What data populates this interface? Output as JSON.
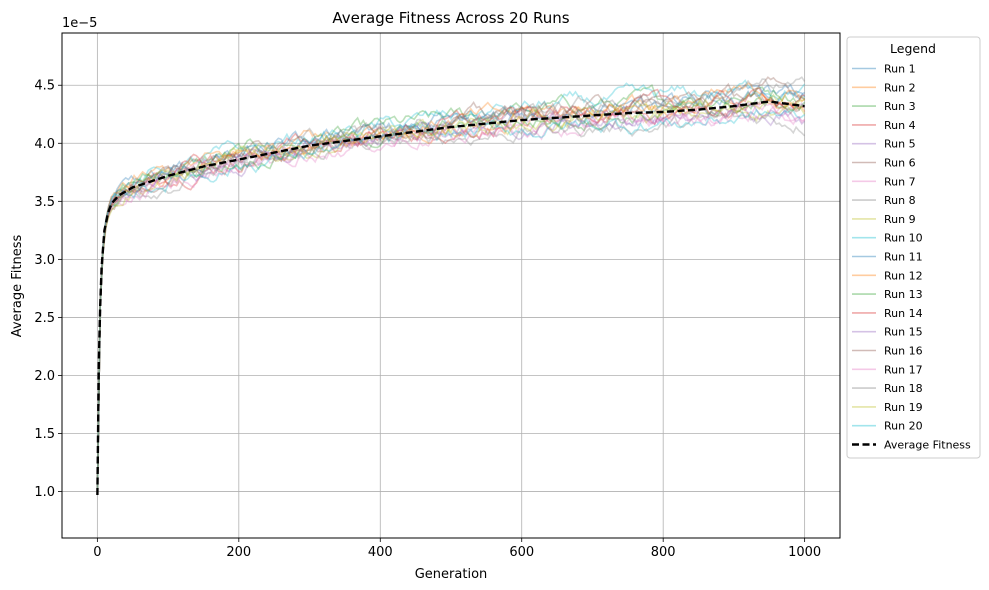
{
  "chart_data": {
    "type": "line",
    "title": "Average Fitness Across 20 Runs",
    "xlabel": "Generation",
    "ylabel": "Average Fitness",
    "y_scale_label": "1e−5",
    "xlim": [
      -50,
      1050
    ],
    "ylim": [
      0.6,
      4.95
    ],
    "y_unit_multiplier": 1e-05,
    "x_ticks": [
      0,
      200,
      400,
      600,
      800,
      1000
    ],
    "y_ticks": [
      1.0,
      1.5,
      2.0,
      2.5,
      3.0,
      3.5,
      4.0,
      4.5
    ],
    "x_tick_labels": [
      "0",
      "200",
      "400",
      "600",
      "800",
      "1000"
    ],
    "y_tick_labels": [
      "1.0",
      "1.5",
      "2.0",
      "2.5",
      "3.0",
      "3.5",
      "4.0",
      "4.5"
    ],
    "grid": true,
    "legend": {
      "title": "Legend",
      "placement": "outside-right"
    },
    "average_series": {
      "name": "Average Fitness",
      "color": "#000000",
      "style": "dashed",
      "x": [
        0,
        2,
        5,
        10,
        15,
        20,
        30,
        50,
        100,
        150,
        200,
        250,
        300,
        350,
        400,
        450,
        500,
        550,
        600,
        650,
        700,
        750,
        800,
        850,
        900,
        950,
        1000
      ],
      "values": [
        0.97,
        2.1,
        2.85,
        3.25,
        3.4,
        3.48,
        3.55,
        3.62,
        3.72,
        3.8,
        3.86,
        3.92,
        3.98,
        4.02,
        4.06,
        4.1,
        4.14,
        4.17,
        4.2,
        4.22,
        4.24,
        4.26,
        4.27,
        4.29,
        4.32,
        4.36,
        4.32
      ]
    },
    "runs": [
      {
        "name": "Run 1",
        "color": "#1f77b4",
        "offset": 0.05
      },
      {
        "name": "Run 2",
        "color": "#ff7f0e",
        "offset": 0.02
      },
      {
        "name": "Run 3",
        "color": "#2ca02c",
        "offset": 0.08
      },
      {
        "name": "Run 4",
        "color": "#d62728",
        "offset": -0.02
      },
      {
        "name": "Run 5",
        "color": "#9467bd",
        "offset": -0.05
      },
      {
        "name": "Run 6",
        "color": "#8c564b",
        "offset": 0.0
      },
      {
        "name": "Run 7",
        "color": "#e377c2",
        "offset": -0.07
      },
      {
        "name": "Run 8",
        "color": "#7f7f7f",
        "offset": -0.1
      },
      {
        "name": "Run 9",
        "color": "#bcbd22",
        "offset": -0.04
      },
      {
        "name": "Run 10",
        "color": "#17becf",
        "offset": 0.1
      },
      {
        "name": "Run 11",
        "color": "#1f77b4",
        "offset": 0.03
      },
      {
        "name": "Run 12",
        "color": "#ff7f0e",
        "offset": 0.06
      },
      {
        "name": "Run 13",
        "color": "#2ca02c",
        "offset": -0.01
      },
      {
        "name": "Run 14",
        "color": "#d62728",
        "offset": 0.04
      },
      {
        "name": "Run 15",
        "color": "#9467bd",
        "offset": -0.03
      },
      {
        "name": "Run 16",
        "color": "#8c564b",
        "offset": 0.07
      },
      {
        "name": "Run 17",
        "color": "#e377c2",
        "offset": -0.06
      },
      {
        "name": "Run 18",
        "color": "#7f7f7f",
        "offset": 0.09
      },
      {
        "name": "Run 19",
        "color": "#bcbd22",
        "offset": 0.01
      },
      {
        "name": "Run 20",
        "color": "#17becf",
        "offset": -0.08
      }
    ]
  }
}
